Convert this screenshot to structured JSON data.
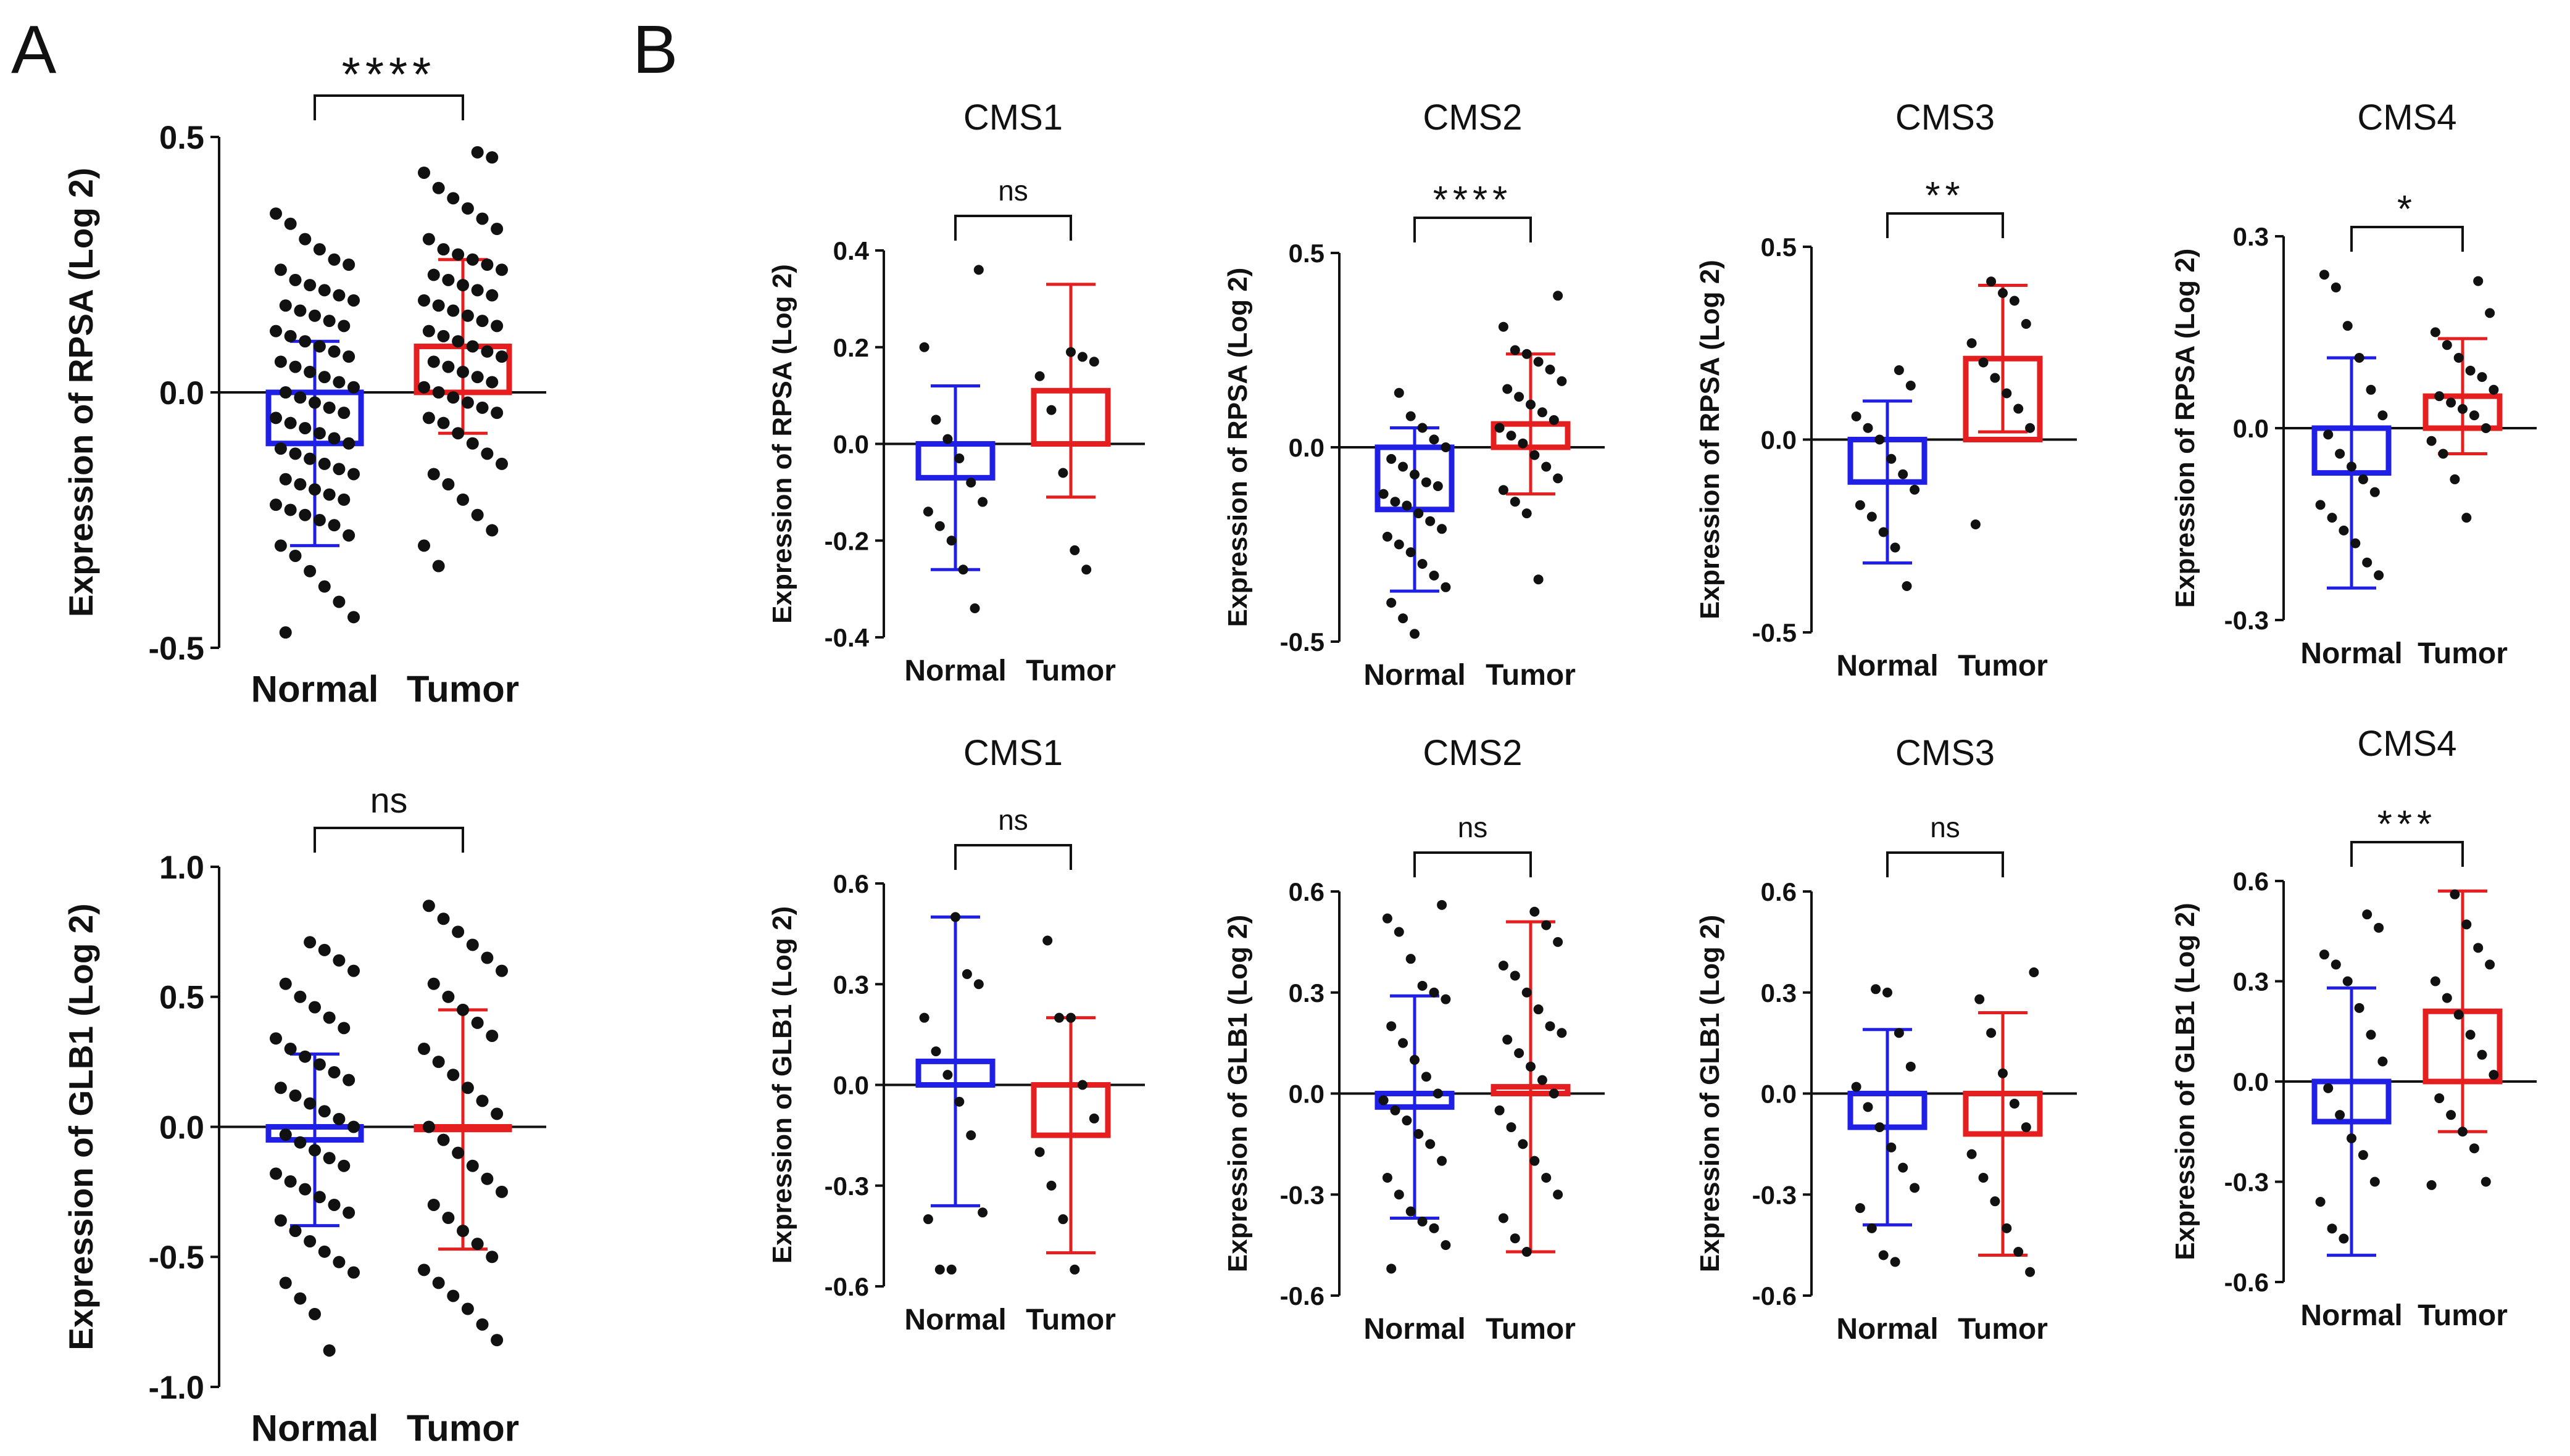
{
  "panel_labels": {
    "a": "A",
    "b": "B"
  },
  "colors": {
    "normal": "#1f1fe6",
    "tumor": "#e51f1f",
    "point": "#111111",
    "axis": "#111111"
  },
  "chart_data": [
    {
      "id": "A-RPSA",
      "type": "bar",
      "title": "",
      "ylabel": "Expression of RPSA (Log 2)",
      "categories": [
        "Normal",
        "Tumor"
      ],
      "ylim": [
        -0.5,
        0.5
      ],
      "yticks": [
        -0.5,
        0.0,
        0.5
      ],
      "ytick_labels": [
        "-0.5",
        "0.0",
        "0.5"
      ],
      "significance": "****",
      "series": [
        {
          "name": "Normal",
          "mean": -0.1,
          "sd": 0.2,
          "points": [
            0.35,
            0.33,
            0.3,
            0.28,
            0.26,
            0.25,
            0.24,
            0.22,
            0.21,
            0.2,
            0.19,
            0.18,
            0.17,
            0.16,
            0.15,
            0.14,
            0.13,
            0.12,
            0.11,
            0.1,
            0.09,
            0.08,
            0.07,
            0.06,
            0.05,
            0.04,
            0.03,
            0.02,
            0.01,
            0.0,
            -0.01,
            -0.02,
            -0.03,
            -0.04,
            -0.05,
            -0.06,
            -0.07,
            -0.08,
            -0.09,
            -0.1,
            -0.11,
            -0.12,
            -0.13,
            -0.14,
            -0.15,
            -0.16,
            -0.17,
            -0.18,
            -0.19,
            -0.2,
            -0.21,
            -0.22,
            -0.23,
            -0.24,
            -0.25,
            -0.26,
            -0.28,
            -0.3,
            -0.32,
            -0.35,
            -0.38,
            -0.41,
            -0.44,
            -0.47
          ]
        },
        {
          "name": "Tumor",
          "mean": 0.09,
          "sd": 0.17,
          "points": [
            0.47,
            0.46,
            0.43,
            0.4,
            0.38,
            0.36,
            0.34,
            0.32,
            0.3,
            0.28,
            0.27,
            0.26,
            0.25,
            0.24,
            0.23,
            0.22,
            0.21,
            0.2,
            0.19,
            0.18,
            0.17,
            0.16,
            0.15,
            0.14,
            0.13,
            0.12,
            0.11,
            0.1,
            0.09,
            0.08,
            0.07,
            0.06,
            0.05,
            0.04,
            0.03,
            0.02,
            0.01,
            0.0,
            -0.01,
            -0.02,
            -0.03,
            -0.04,
            -0.05,
            -0.06,
            -0.08,
            -0.1,
            -0.12,
            -0.14,
            -0.16,
            -0.18,
            -0.21,
            -0.24,
            -0.27,
            -0.3,
            -0.34
          ]
        }
      ]
    },
    {
      "id": "A-GLB1",
      "type": "bar",
      "title": "",
      "ylabel": "Expression of GLB1 (Log 2)",
      "categories": [
        "Normal",
        "Tumor"
      ],
      "ylim": [
        -1.0,
        1.0
      ],
      "yticks": [
        -1.0,
        -0.5,
        0.0,
        0.5,
        1.0
      ],
      "ytick_labels": [
        "-1.0",
        "-0.5",
        "0.0",
        "0.5",
        "1.0"
      ],
      "significance": "ns",
      "series": [
        {
          "name": "Normal",
          "mean": -0.05,
          "sd": 0.33,
          "points": [
            0.71,
            0.68,
            0.64,
            0.6,
            0.55,
            0.5,
            0.46,
            0.42,
            0.38,
            0.34,
            0.3,
            0.27,
            0.24,
            0.21,
            0.18,
            0.15,
            0.12,
            0.09,
            0.06,
            0.03,
            0.0,
            -0.03,
            -0.06,
            -0.09,
            -0.12,
            -0.15,
            -0.18,
            -0.21,
            -0.24,
            -0.27,
            -0.3,
            -0.33,
            -0.36,
            -0.4,
            -0.44,
            -0.48,
            -0.52,
            -0.56,
            -0.6,
            -0.66,
            -0.72,
            -0.86
          ]
        },
        {
          "name": "Tumor",
          "mean": -0.01,
          "sd": 0.46,
          "points": [
            0.85,
            0.8,
            0.75,
            0.7,
            0.65,
            0.6,
            0.55,
            0.5,
            0.45,
            0.4,
            0.35,
            0.3,
            0.25,
            0.2,
            0.15,
            0.1,
            0.05,
            0.0,
            -0.05,
            -0.1,
            -0.15,
            -0.2,
            -0.25,
            -0.3,
            -0.35,
            -0.4,
            -0.45,
            -0.5,
            -0.55,
            -0.6,
            -0.65,
            -0.7,
            -0.76,
            -0.82
          ]
        }
      ]
    },
    {
      "id": "B-RPSA-CMS1",
      "type": "bar",
      "title": "CMS1",
      "ylabel": "Expression of RPSA (Log 2)",
      "categories": [
        "Normal",
        "Tumor"
      ],
      "ylim": [
        -0.4,
        0.4
      ],
      "yticks": [
        -0.4,
        -0.2,
        0.0,
        0.2,
        0.4
      ],
      "ytick_labels": [
        "-0.4",
        "-0.2",
        "0.0",
        "0.2",
        "0.4"
      ],
      "significance": "ns",
      "series": [
        {
          "name": "Normal",
          "mean": -0.07,
          "sd": 0.19,
          "points": [
            0.36,
            0.2,
            0.05,
            0.01,
            -0.03,
            -0.08,
            -0.12,
            -0.14,
            -0.17,
            -0.2,
            -0.26,
            -0.34
          ]
        },
        {
          "name": "Tumor",
          "mean": 0.11,
          "sd": 0.22,
          "points": [
            0.19,
            0.18,
            0.17,
            0.14,
            0.07,
            -0.06,
            -0.22,
            -0.26
          ]
        }
      ]
    },
    {
      "id": "B-RPSA-CMS2",
      "type": "bar",
      "title": "CMS2",
      "ylabel": "Expression of RPSA (Log 2)",
      "categories": [
        "Normal",
        "Tumor"
      ],
      "ylim": [
        -0.5,
        0.5
      ],
      "yticks": [
        -0.5,
        0.0,
        0.5
      ],
      "ytick_labels": [
        "-0.5",
        "0.0",
        "0.5"
      ],
      "significance": "****",
      "series": [
        {
          "name": "Normal",
          "mean": -0.16,
          "sd": 0.21,
          "points": [
            0.14,
            0.08,
            0.05,
            0.02,
            0.0,
            -0.03,
            -0.05,
            -0.07,
            -0.09,
            -0.1,
            -0.12,
            -0.14,
            -0.15,
            -0.17,
            -0.19,
            -0.21,
            -0.23,
            -0.25,
            -0.27,
            -0.3,
            -0.33,
            -0.36,
            -0.4,
            -0.44,
            -0.48
          ]
        },
        {
          "name": "Tumor",
          "mean": 0.06,
          "sd": 0.18,
          "points": [
            0.39,
            0.31,
            0.25,
            0.24,
            0.22,
            0.2,
            0.17,
            0.15,
            0.13,
            0.11,
            0.09,
            0.07,
            0.05,
            0.03,
            0.01,
            -0.02,
            -0.05,
            -0.08,
            -0.11,
            -0.14,
            -0.17,
            -0.34
          ]
        }
      ]
    },
    {
      "id": "B-RPSA-CMS3",
      "type": "bar",
      "title": "CMS3",
      "ylabel": "Expression of RPSA (Log 2)",
      "categories": [
        "Normal",
        "Tumor"
      ],
      "ylim": [
        -0.5,
        0.5
      ],
      "yticks": [
        -0.5,
        0.0,
        0.5
      ],
      "ytick_labels": [
        "-0.5",
        "0.0",
        "0.5"
      ],
      "significance": "**",
      "series": [
        {
          "name": "Normal",
          "mean": -0.11,
          "sd": 0.21,
          "points": [
            0.18,
            0.14,
            0.06,
            0.03,
            0.0,
            -0.05,
            -0.09,
            -0.13,
            -0.17,
            -0.2,
            -0.24,
            -0.28,
            -0.38
          ]
        },
        {
          "name": "Tumor",
          "mean": 0.21,
          "sd": 0.19,
          "points": [
            0.41,
            0.38,
            0.36,
            0.3,
            0.25,
            0.2,
            0.16,
            0.12,
            0.08,
            0.03,
            -0.22
          ]
        }
      ]
    },
    {
      "id": "B-RPSA-CMS4",
      "type": "bar",
      "title": "CMS4",
      "ylabel": "Expression of RPSA (Log 2)",
      "categories": [
        "Normal",
        "Tumor"
      ],
      "ylim": [
        -0.3,
        0.3
      ],
      "yticks": [
        -0.3,
        0.0,
        0.3
      ],
      "ytick_labels": [
        "-0.3",
        "0.0",
        "0.3"
      ],
      "significance": "*",
      "series": [
        {
          "name": "Normal",
          "mean": -0.07,
          "sd": 0.18,
          "points": [
            0.24,
            0.22,
            0.16,
            0.11,
            0.06,
            0.02,
            -0.01,
            -0.04,
            -0.06,
            -0.08,
            -0.1,
            -0.12,
            -0.14,
            -0.16,
            -0.18,
            -0.21,
            -0.23
          ]
        },
        {
          "name": "Tumor",
          "mean": 0.05,
          "sd": 0.09,
          "points": [
            0.23,
            0.18,
            0.15,
            0.13,
            0.11,
            0.09,
            0.08,
            0.06,
            0.05,
            0.04,
            0.03,
            0.02,
            0.0,
            -0.02,
            -0.04,
            -0.08,
            -0.14
          ]
        }
      ]
    },
    {
      "id": "B-GLB1-CMS1",
      "type": "bar",
      "title": "CMS1",
      "ylabel": "Expression of GLB1 (Log 2)",
      "categories": [
        "Normal",
        "Tumor"
      ],
      "ylim": [
        -0.6,
        0.6
      ],
      "yticks": [
        -0.6,
        -0.3,
        0.0,
        0.3,
        0.6
      ],
      "ytick_labels": [
        "-0.6",
        "-0.3",
        "0.0",
        "0.3",
        "0.6"
      ],
      "significance": "ns",
      "series": [
        {
          "name": "Normal",
          "mean": 0.07,
          "sd": 0.43,
          "points": [
            0.5,
            0.33,
            0.3,
            0.2,
            0.1,
            0.03,
            -0.05,
            -0.15,
            -0.38,
            -0.4,
            -0.55,
            -0.55
          ]
        },
        {
          "name": "Tumor",
          "mean": -0.15,
          "sd": 0.35,
          "points": [
            0.43,
            0.2,
            0.2,
            0.0,
            -0.1,
            -0.2,
            -0.3,
            -0.4,
            -0.55
          ]
        }
      ]
    },
    {
      "id": "B-GLB1-CMS2",
      "type": "bar",
      "title": "CMS2",
      "ylabel": "Expression of GLB1 (Log 2)",
      "categories": [
        "Normal",
        "Tumor"
      ],
      "ylim": [
        -0.6,
        0.6
      ],
      "yticks": [
        -0.6,
        -0.3,
        0.0,
        0.3,
        0.6
      ],
      "ytick_labels": [
        "-0.6",
        "-0.3",
        "0.0",
        "0.3",
        "0.6"
      ],
      "significance": "ns",
      "series": [
        {
          "name": "Normal",
          "mean": -0.04,
          "sd": 0.33,
          "points": [
            0.56,
            0.52,
            0.48,
            0.4,
            0.32,
            0.3,
            0.28,
            0.2,
            0.15,
            0.1,
            0.05,
            0.0,
            -0.02,
            -0.05,
            -0.08,
            -0.12,
            -0.15,
            -0.2,
            -0.25,
            -0.3,
            -0.35,
            -0.38,
            -0.4,
            -0.45,
            -0.52
          ]
        },
        {
          "name": "Tumor",
          "mean": 0.02,
          "sd": 0.49,
          "points": [
            0.54,
            0.5,
            0.45,
            0.38,
            0.35,
            0.3,
            0.25,
            0.2,
            0.18,
            0.16,
            0.12,
            0.08,
            0.04,
            0.0,
            -0.05,
            -0.1,
            -0.15,
            -0.2,
            -0.25,
            -0.3,
            -0.37,
            -0.43,
            -0.47
          ]
        }
      ]
    },
    {
      "id": "B-GLB1-CMS3",
      "type": "bar",
      "title": "CMS3",
      "ylabel": "Expression of GLB1 (Log 2)",
      "categories": [
        "Normal",
        "Tumor"
      ],
      "ylim": [
        -0.6,
        0.6
      ],
      "yticks": [
        -0.6,
        -0.3,
        0.0,
        0.3,
        0.6
      ],
      "ytick_labels": [
        "-0.6",
        "-0.3",
        "0.0",
        "0.3",
        "0.6"
      ],
      "significance": "ns",
      "series": [
        {
          "name": "Normal",
          "mean": -0.1,
          "sd": 0.29,
          "points": [
            0.31,
            0.3,
            0.18,
            0.08,
            0.02,
            -0.04,
            -0.1,
            -0.16,
            -0.22,
            -0.28,
            -0.34,
            -0.4,
            -0.48,
            -0.5
          ]
        },
        {
          "name": "Tumor",
          "mean": -0.12,
          "sd": 0.36,
          "points": [
            0.36,
            0.28,
            0.18,
            0.06,
            -0.03,
            -0.1,
            -0.18,
            -0.25,
            -0.32,
            -0.4,
            -0.47,
            -0.53
          ]
        }
      ]
    },
    {
      "id": "B-GLB1-CMS4",
      "type": "bar",
      "title": "CMS4",
      "ylabel": "Expression of GLB1 (Log 2)",
      "categories": [
        "Normal",
        "Tumor"
      ],
      "ylim": [
        -0.6,
        0.6
      ],
      "yticks": [
        -0.6,
        -0.3,
        0.0,
        0.3,
        0.6
      ],
      "ytick_labels": [
        "-0.6",
        "-0.3",
        "0.0",
        "0.3",
        "0.6"
      ],
      "significance": "***",
      "series": [
        {
          "name": "Normal",
          "mean": -0.12,
          "sd": 0.4,
          "points": [
            0.5,
            0.46,
            0.38,
            0.35,
            0.3,
            0.22,
            0.14,
            0.06,
            -0.02,
            -0.1,
            -0.17,
            -0.22,
            -0.3,
            -0.36,
            -0.44,
            -0.47
          ]
        },
        {
          "name": "Tumor",
          "mean": 0.21,
          "sd": 0.36,
          "points": [
            0.56,
            0.47,
            0.4,
            0.35,
            0.3,
            0.25,
            0.2,
            0.14,
            0.08,
            0.02,
            -0.05,
            -0.1,
            -0.15,
            -0.2,
            -0.3,
            -0.31
          ]
        }
      ]
    }
  ]
}
